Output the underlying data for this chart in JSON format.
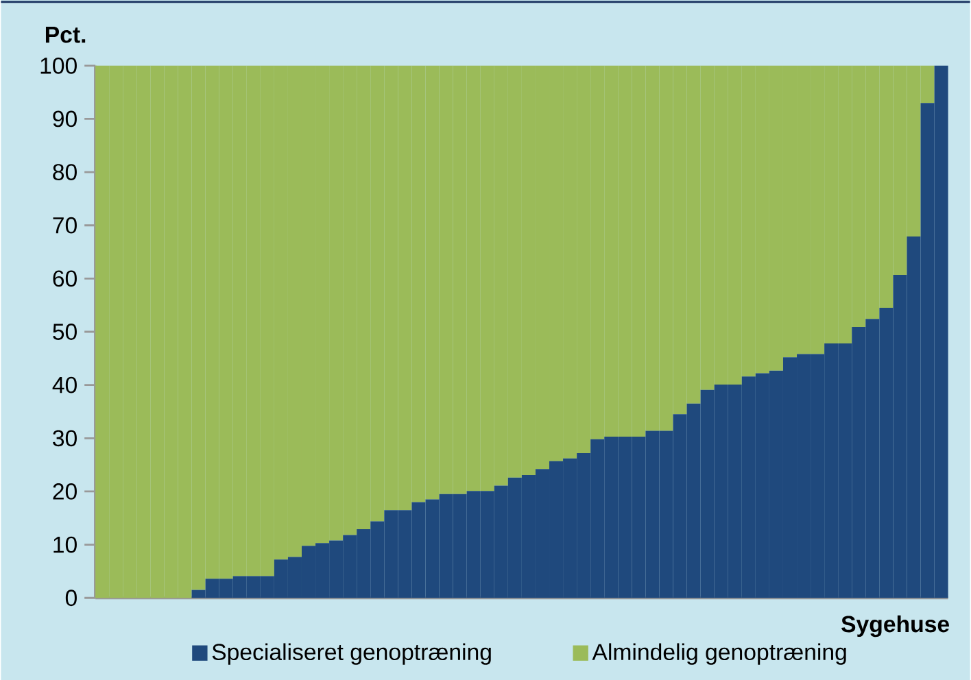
{
  "chart_data": {
    "type": "bar",
    "stacked": true,
    "ylabel": "Pct.",
    "xlabel": "Sygehuse",
    "categories": [
      null,
      null,
      null,
      null,
      null,
      null,
      null,
      null,
      null,
      null,
      null,
      null,
      null,
      null,
      null,
      null,
      null,
      null,
      null,
      null,
      null,
      null,
      null,
      null,
      null,
      null,
      null,
      null,
      null,
      null,
      null,
      null,
      null,
      null,
      null,
      null,
      null,
      null,
      null,
      null,
      null,
      null,
      null,
      null,
      null,
      null,
      null,
      null,
      null,
      null,
      null,
      null,
      null,
      null,
      null,
      null,
      null,
      null,
      null,
      null,
      null,
      null
    ],
    "series": [
      {
        "name": "Specialiseret genoptræning",
        "color": "#1f497d",
        "values": [
          0,
          0,
          0,
          0,
          0,
          0,
          0,
          1.5,
          3.6,
          3.6,
          4.1,
          4.1,
          4.1,
          7.2,
          7.7,
          9.8,
          10.3,
          10.8,
          11.8,
          12.9,
          14.4,
          16.5,
          16.5,
          18.0,
          18.5,
          19.5,
          19.5,
          20.1,
          20.1,
          21.1,
          22.6,
          23.1,
          24.2,
          25.7,
          26.2,
          27.2,
          29.8,
          30.3,
          30.3,
          30.3,
          31.4,
          31.4,
          34.5,
          36.5,
          39.1,
          40.1,
          40.1,
          41.6,
          42.2,
          42.7,
          45.2,
          45.8,
          45.8,
          47.8,
          47.8,
          50.9,
          52.4,
          54.5,
          60.7,
          67.9,
          93,
          100
        ]
      },
      {
        "name": "Almindelig genoptræning",
        "color": "#9bbb59",
        "values": [
          100,
          100,
          100,
          100,
          100,
          100,
          100,
          98.5,
          96.4,
          96.4,
          95.9,
          95.9,
          95.9,
          92.8,
          92.3,
          90.2,
          89.7,
          89.2,
          88.2,
          87.1,
          85.6,
          83.5,
          83.5,
          82.0,
          81.5,
          80.5,
          80.5,
          79.9,
          79.9,
          78.9,
          77.4,
          76.9,
          75.8,
          74.3,
          73.8,
          72.8,
          70.2,
          69.7,
          69.7,
          69.7,
          68.6,
          68.6,
          65.5,
          63.5,
          60.9,
          59.9,
          59.9,
          58.4,
          57.8,
          57.3,
          54.8,
          54.2,
          54.2,
          52.2,
          52.2,
          49.1,
          47.6,
          45.5,
          39.3,
          32.1,
          7,
          0
        ]
      }
    ],
    "ylim": [
      0,
      100
    ],
    "yticks": [
      0,
      10,
      20,
      30,
      40,
      50,
      60,
      70,
      80,
      90,
      100
    ],
    "legend": "bottom",
    "grid": false
  }
}
